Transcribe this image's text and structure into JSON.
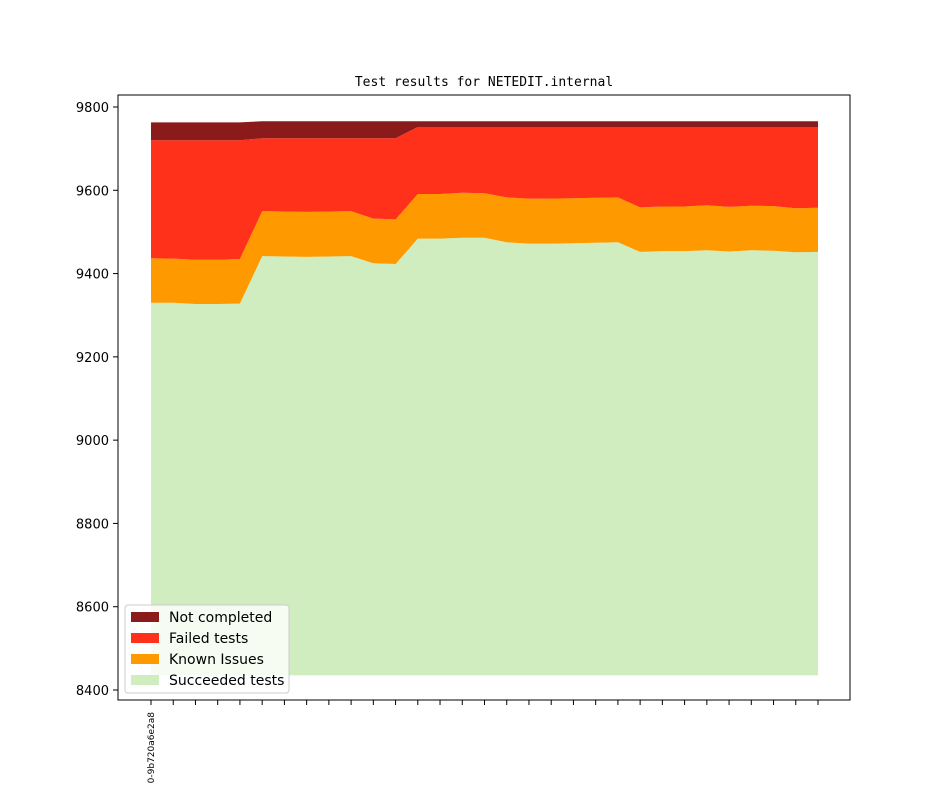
{
  "chart_data": {
    "type": "area",
    "stacked": true,
    "title": "Test results for NETEDIT.internal",
    "xlabel": "",
    "ylabel": "",
    "ylim": [
      8400,
      9800
    ],
    "yticks": [
      8400,
      8600,
      8800,
      9000,
      9200,
      9400,
      9600,
      9800
    ],
    "x_tick_labels": [
      "0-9b720a6e2a8"
    ],
    "n_points": 31,
    "baseline": 8435,
    "legend_position": "lower-left",
    "series": [
      {
        "name": "Succeeded tests",
        "color": "#cfedbf",
        "values": [
          9330,
          9330,
          9327,
          9327,
          9328,
          9442,
          9441,
          9440,
          9441,
          9442,
          9425,
          9423,
          9484,
          9484,
          9486,
          9486,
          9475,
          9472,
          9472,
          9473,
          9474,
          9475,
          9452,
          9454,
          9454,
          9456,
          9453,
          9456,
          9455,
          9451,
          9452
        ]
      },
      {
        "name": "Known Issues",
        "color": "#fe9900",
        "values": [
          9437,
          9436,
          9433,
          9433,
          9435,
          9550,
          9549,
          9548,
          9549,
          9550,
          9532,
          9530,
          9591,
          9591,
          9594,
          9593,
          9583,
          9580,
          9580,
          9581,
          9582,
          9583,
          9559,
          9561,
          9561,
          9564,
          9560,
          9563,
          9562,
          9557,
          9558
        ]
      },
      {
        "name": "Failed tests",
        "color": "#ff311a",
        "values": [
          9720,
          9720,
          9720,
          9720,
          9720,
          9725,
          9725,
          9725,
          9725,
          9725,
          9725,
          9725,
          9752,
          9752,
          9752,
          9752,
          9752,
          9752,
          9752,
          9752,
          9752,
          9752,
          9752,
          9752,
          9752,
          9752,
          9752,
          9752,
          9752,
          9752,
          9752
        ]
      },
      {
        "name": "Not completed",
        "color": "#8b1a1a",
        "values": [
          9763,
          9763,
          9763,
          9763,
          9763,
          9766,
          9766,
          9766,
          9766,
          9766,
          9766,
          9766,
          9766,
          9766,
          9766,
          9766,
          9766,
          9766,
          9766,
          9766,
          9766,
          9766,
          9766,
          9766,
          9766,
          9766,
          9766,
          9766,
          9766,
          9766,
          9766
        ]
      }
    ],
    "legend_order": [
      "Not completed",
      "Failed tests",
      "Known Issues",
      "Succeeded tests"
    ]
  }
}
